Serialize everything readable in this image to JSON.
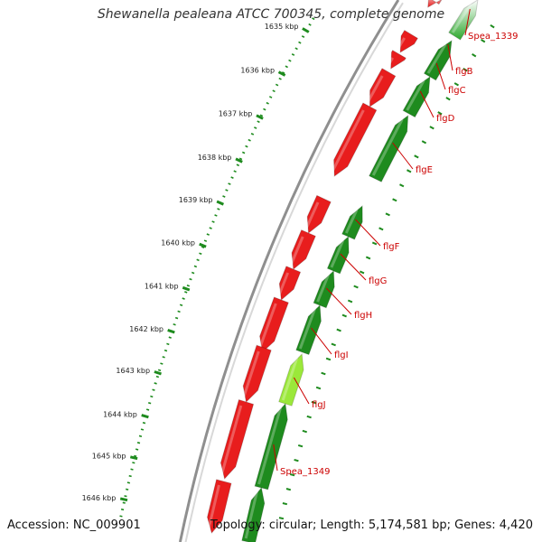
{
  "title": "Shewanella pealeana ATCC 700345, complete genome",
  "footer": {
    "accession": "Accession: NC_009901",
    "topology": "Topology: circular; Length: 5,174,581 bp; Genes: 4,420"
  },
  "colors": {
    "background": "#ffffff",
    "backbone": "#999999",
    "forward_gene": "#e81d1d",
    "reverse_gene": "#1e8b1e",
    "reverse_gene_highlight": "#9be83a",
    "tick": "#1e8b1e",
    "label": "#cc0000"
  },
  "scale_ticks": [
    {
      "label": "1635 kbp"
    },
    {
      "label": "1636 kbp"
    },
    {
      "label": "1637 kbp"
    },
    {
      "label": "1638 kbp"
    },
    {
      "label": "1639 kbp"
    },
    {
      "label": "1640 kbp"
    },
    {
      "label": "1641 kbp"
    },
    {
      "label": "1642 kbp"
    },
    {
      "label": "1643 kbp"
    },
    {
      "label": "1644 kbp"
    },
    {
      "label": "1645 kbp"
    },
    {
      "label": "1646 kbp"
    }
  ],
  "gene_labels": [
    {
      "name": "Spea_1339"
    },
    {
      "name": "flgB"
    },
    {
      "name": "flgC"
    },
    {
      "name": "flgD"
    },
    {
      "name": "flgE"
    },
    {
      "name": "flgF"
    },
    {
      "name": "flgG"
    },
    {
      "name": "flgH"
    },
    {
      "name": "flgI"
    },
    {
      "name": "flgJ"
    },
    {
      "name": "Spea_1349"
    }
  ]
}
